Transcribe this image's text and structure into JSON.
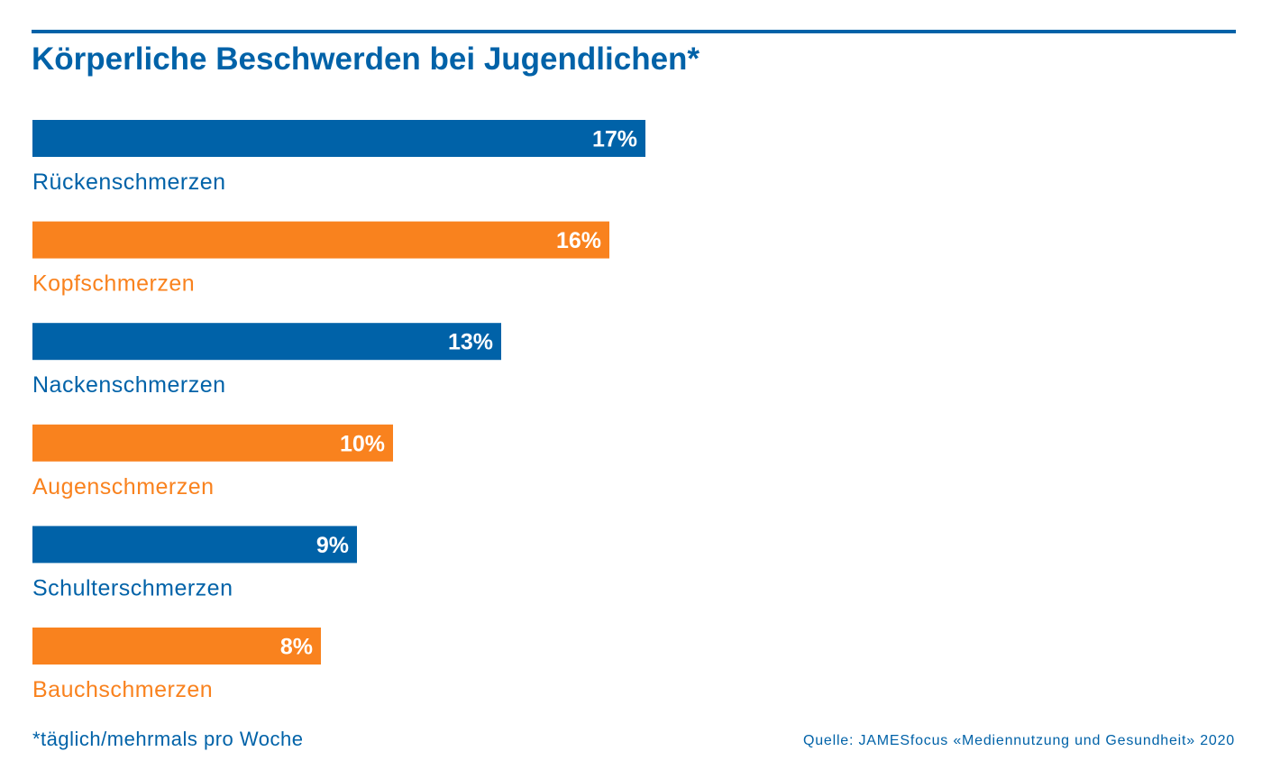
{
  "chart_data": {
    "type": "bar",
    "orientation": "horizontal",
    "title": "Körperliche Beschwerden bei Jugendlichen*",
    "categories": [
      "Rückenschmerzen",
      "Kopfschmerzen",
      "Nackenschmerzen",
      "Augenschmerzen",
      "Schulterschmerzen",
      "Bauchschmerzen"
    ],
    "values": [
      17,
      16,
      13,
      10,
      9,
      8
    ],
    "value_labels": [
      "17%",
      "16%",
      "13%",
      "10%",
      "9%",
      "8%"
    ],
    "colors": [
      "#0062a8",
      "#f9821e",
      "#0062a8",
      "#f9821e",
      "#0062a8",
      "#f9821e"
    ],
    "unit": "%",
    "xlim": [
      0,
      35
    ],
    "grid": false,
    "legend": "none",
    "footnote": "*täglich/mehrmals pro Woche",
    "source": "Quelle: JAMESfocus «Mediennutzung und Gesundheit» 2020"
  }
}
